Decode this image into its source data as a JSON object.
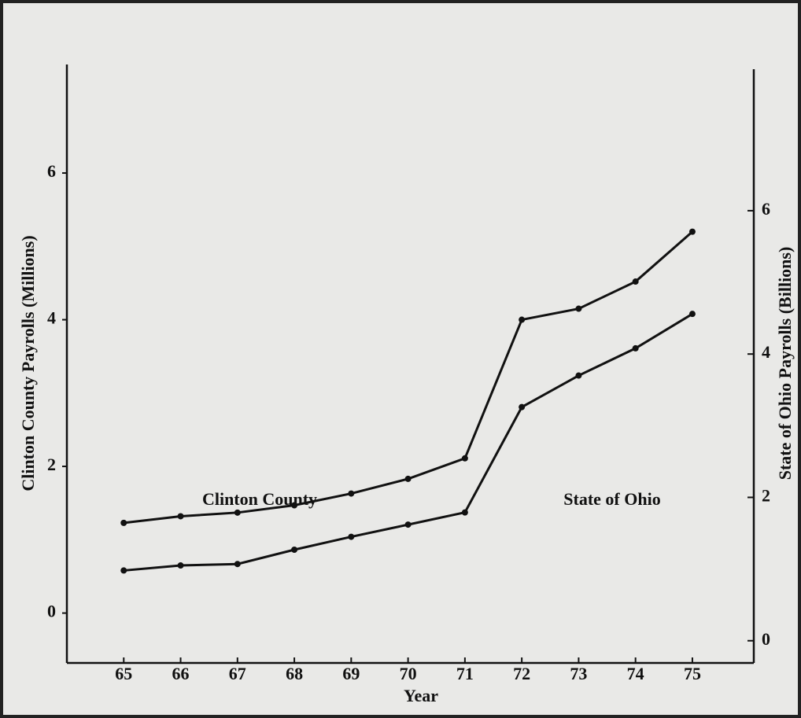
{
  "chart_data": {
    "type": "line",
    "x_label": "Year",
    "y_label": "Clinton County Payrolls (Millions)",
    "y2_label": "State of Ohio Payrolls (Billions)",
    "x": [
      65,
      66,
      67,
      68,
      69,
      70,
      71,
      72,
      73,
      74,
      75
    ],
    "xlim": [
      64,
      76.08
    ],
    "xticks": [
      65,
      66,
      67,
      68,
      69,
      70,
      71,
      72,
      73,
      74,
      75
    ],
    "ylim": [
      -0.68,
      7.48
    ],
    "yticks": [
      0,
      2,
      4,
      6
    ],
    "y2lim": [
      -0.31,
      8.04
    ],
    "y2ticks": [
      0,
      2,
      4,
      6
    ],
    "series": [
      {
        "name": "Clinton County",
        "color": "#111111",
        "values": [
          1.23,
          1.32,
          1.37,
          1.47,
          1.63,
          1.83,
          2.11,
          4.0,
          4.15,
          4.52,
          5.2
        ]
      },
      {
        "name": "State of Ohio",
        "color": "#111111",
        "axis": "y2",
        "values": [
          0.98,
          1.05,
          1.07,
          1.27,
          1.45,
          1.62,
          1.79,
          3.26,
          3.7,
          4.08,
          4.56
        ]
      }
    ]
  }
}
